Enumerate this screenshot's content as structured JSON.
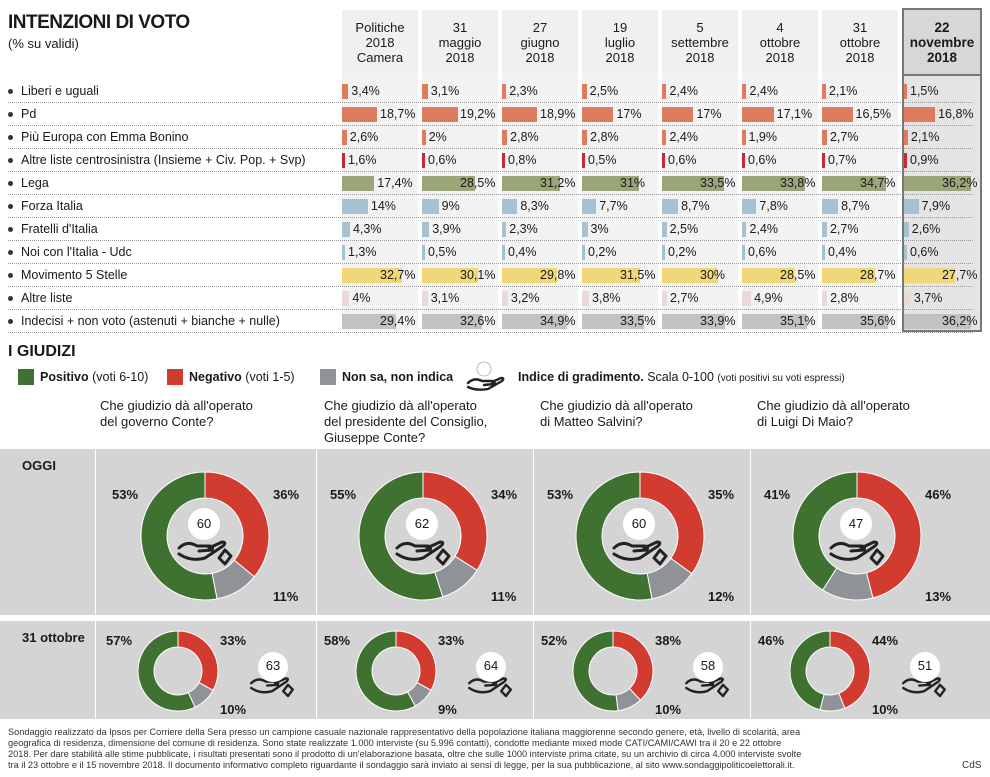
{
  "header": {
    "title": "INTENZIONI DI VOTO",
    "subtitle": "(% su validi)"
  },
  "chart_data": [
    {
      "type": "bar",
      "title": "INTENZIONI DI VOTO",
      "subtitle": "(% su validi)",
      "columns": [
        "Politiche 2018 Camera",
        "31 maggio 2018",
        "27 giugno 2018",
        "19 luglio 2018",
        "5 settembre 2018",
        "4 ottobre 2018",
        "31 ottobre 2018",
        "22 novembre 2018"
      ],
      "column_lines": [
        [
          "Politiche",
          "2018",
          "Camera"
        ],
        [
          "31",
          "maggio",
          "2018"
        ],
        [
          "27",
          "giugno",
          "2018"
        ],
        [
          "19",
          "luglio",
          "2018"
        ],
        [
          "5",
          "settembre",
          "2018"
        ],
        [
          "4",
          "ottobre",
          "2018"
        ],
        [
          "31",
          "ottobre",
          "2018"
        ],
        [
          "22",
          "novembre",
          "2018"
        ]
      ],
      "rows": [
        {
          "name": "Liberi e uguali",
          "color": "#e07a5c",
          "values": [
            3.4,
            3.1,
            2.3,
            2.5,
            2.4,
            2.4,
            2.1,
            1.5
          ],
          "labels": [
            "3,4%",
            "3,1%",
            "2,3%",
            "2,5%",
            "2,4%",
            "2,4%",
            "2,1%",
            "1,5%"
          ]
        },
        {
          "name": "Pd",
          "color": "#e07a5c",
          "values": [
            18.7,
            19.2,
            18.9,
            17,
            17,
            17.1,
            16.5,
            16.8
          ],
          "labels": [
            "18,7%",
            "19,2%",
            "18,9%",
            "17%",
            "17%",
            "17,1%",
            "16,5%",
            "16,8%"
          ]
        },
        {
          "name": "Più Europa con Emma Bonino",
          "color": "#e07a5c",
          "values": [
            2.6,
            2,
            2.8,
            2.8,
            2.4,
            1.9,
            2.7,
            2.1
          ],
          "labels": [
            "2,6%",
            "2%",
            "2,8%",
            "2,8%",
            "2,4%",
            "1,9%",
            "2,7%",
            "2,1%"
          ]
        },
        {
          "name": "Altre liste centrosinistra  (Insieme + Civ. Pop. + Svp)",
          "color": "#c8282e",
          "values": [
            1.6,
            0.6,
            0.8,
            0.5,
            0.6,
            0.6,
            0.7,
            0.9
          ],
          "labels": [
            "1,6%",
            "0,6%",
            "0,8%",
            "0,5%",
            "0,6%",
            "0,6%",
            "0,7%",
            "0,9%"
          ]
        },
        {
          "name": "Lega",
          "color": "#9aa57a",
          "values": [
            17.4,
            28.5,
            31.2,
            31,
            33.5,
            33.8,
            34.7,
            36.2
          ],
          "labels": [
            "17,4%",
            "28,5%",
            "31,2%",
            "31%",
            "33,5%",
            "33,8%",
            "34,7%",
            "36,2%"
          ]
        },
        {
          "name": "Forza Italia",
          "color": "#a6c2d0",
          "values": [
            14,
            9,
            8.3,
            7.7,
            8.7,
            7.8,
            8.7,
            7.9
          ],
          "labels": [
            "14%",
            "9%",
            "8,3%",
            "7,7%",
            "8,7%",
            "7,8%",
            "8,7%",
            "7,9%"
          ]
        },
        {
          "name": "Fratelli d'Italia",
          "color": "#a6c2d0",
          "values": [
            4.3,
            3.9,
            2.3,
            3,
            2.5,
            2.4,
            2.7,
            2.6
          ],
          "labels": [
            "4,3%",
            "3,9%",
            "2,3%",
            "3%",
            "2,5%",
            "2,4%",
            "2,7%",
            "2,6%"
          ]
        },
        {
          "name": "Noi con l'Italia - Udc",
          "color": "#a6c2d0",
          "values": [
            1.3,
            0.5,
            0.4,
            0.2,
            0.2,
            0.6,
            0.4,
            0.6
          ],
          "labels": [
            "1,3%",
            "0,5%",
            "0,4%",
            "0,2%",
            "0,2%",
            "0,6%",
            "0,4%",
            "0,6%"
          ]
        },
        {
          "name": "Movimento 5 Stelle",
          "color": "#f0d77a",
          "values": [
            32.7,
            30.1,
            29.8,
            31.5,
            30,
            28.5,
            28.7,
            27.7
          ],
          "labels": [
            "32,7%",
            "30,1%",
            "29,8%",
            "31,5%",
            "30%",
            "28,5%",
            "28,7%",
            "27,7%"
          ]
        },
        {
          "name": "Altre liste",
          "color": "#ead9d6",
          "values": [
            4,
            3.1,
            3.2,
            3.8,
            2.7,
            4.9,
            2.8,
            3.7
          ],
          "labels": [
            "4%",
            "3,1%",
            "3,2%",
            "3,8%",
            "2,7%",
            "4,9%",
            "2,8%",
            "3,7%"
          ]
        },
        {
          "name": "Indecisi + non voto (astenuti + bianche + nulle)",
          "color": "#c0c2c4",
          "values": [
            29.4,
            32.6,
            34.9,
            33.5,
            33.9,
            35.1,
            35.6,
            36.2
          ],
          "labels": [
            "29,4%",
            "32,6%",
            "34,9%",
            "33,5%",
            "33,9%",
            "35,1%",
            "35,6%",
            "36,2%"
          ]
        }
      ]
    },
    {
      "type": "pie",
      "title": "I GIUDIZI",
      "legend": {
        "positive": {
          "bold": "Positivo",
          "rest": "(voti 6-10)",
          "color": "#3f7230"
        },
        "negative": {
          "bold": "Negativo",
          "rest": "(voti 1-5)",
          "color": "#d13b30"
        },
        "na": {
          "bold": "Non sa, non indica",
          "color": "#8f9296"
        },
        "index": {
          "bold": "Indice di gradimento.",
          "rest": "Scala 0-100",
          "small": "(voti positivi su voti espressi)"
        }
      },
      "series_colors": [
        "#3f7230",
        "#d13b30",
        "#8f9296"
      ],
      "rows": [
        "OGGI",
        "31 ottobre"
      ],
      "questions": [
        {
          "text": [
            "Che giudizio dà all'operato",
            "del governo Conte?"
          ],
          "oggi": {
            "values": [
              53,
              36,
              11
            ],
            "labels": [
              "53%",
              "36%",
              "11%"
            ],
            "index": "60"
          },
          "ott": {
            "values": [
              57,
              33,
              10
            ],
            "labels": [
              "57%",
              "33%",
              "10%"
            ],
            "index": "63"
          }
        },
        {
          "text": [
            "Che giudizio dà all'operato",
            "del presidente del Consiglio,",
            "Giuseppe Conte?"
          ],
          "oggi": {
            "values": [
              55,
              34,
              11
            ],
            "labels": [
              "55%",
              "34%",
              "11%"
            ],
            "index": "62"
          },
          "ott": {
            "values": [
              58,
              33,
              9
            ],
            "labels": [
              "58%",
              "33%",
              "9%"
            ],
            "index": "64"
          }
        },
        {
          "text": [
            "Che giudizio dà all'operato",
            "di Matteo Salvini?"
          ],
          "oggi": {
            "values": [
              53,
              35,
              12
            ],
            "labels": [
              "53%",
              "35%",
              "12%"
            ],
            "index": "60"
          },
          "ott": {
            "values": [
              52,
              38,
              10
            ],
            "labels": [
              "52%",
              "38%",
              "10%"
            ],
            "index": "58"
          }
        },
        {
          "text": [
            "Che giudizio dà all'operato",
            "di Luigi Di Maio?"
          ],
          "oggi": {
            "values": [
              41,
              46,
              13
            ],
            "labels": [
              "41%",
              "46%",
              "13%"
            ],
            "index": "47"
          },
          "ott": {
            "values": [
              46,
              44,
              10
            ],
            "labels": [
              "46%",
              "44%",
              "10%"
            ],
            "index": "51"
          }
        }
      ]
    }
  ],
  "footnote": [
    "Sondaggio realizzato da Ipsos per Corriere della Sera presso un campione casuale nazionale rappresentativo della popolazione italiana maggiorenne secondo genere, età, livello di scolarità, area",
    "geografica di residenza, dimensione del comune di residenza. Sono state realizzate 1.000 interviste (su 5.996 contatti), condotte mediante mixed mode CATI/CAMI/CAWI  tra il 20 e 22 ottobre",
    "2018. Per dare stabilità alle stime pubblicate, i risultati presentati sono il prodotto di un'elaborazione basata, oltre che sulle 1000 interviste prima citate, su un archivio di circa 4.000 interviste svolte",
    "tra il 23 ottobre e il 15 novembre 2018. Il documento informativo completo riguardante il sondaggio sarà inviato ai sensi di legge, per la sua pubblicazione, al sito www.sondaggipoliticoelettorali.it."
  ],
  "credit": "CdS"
}
